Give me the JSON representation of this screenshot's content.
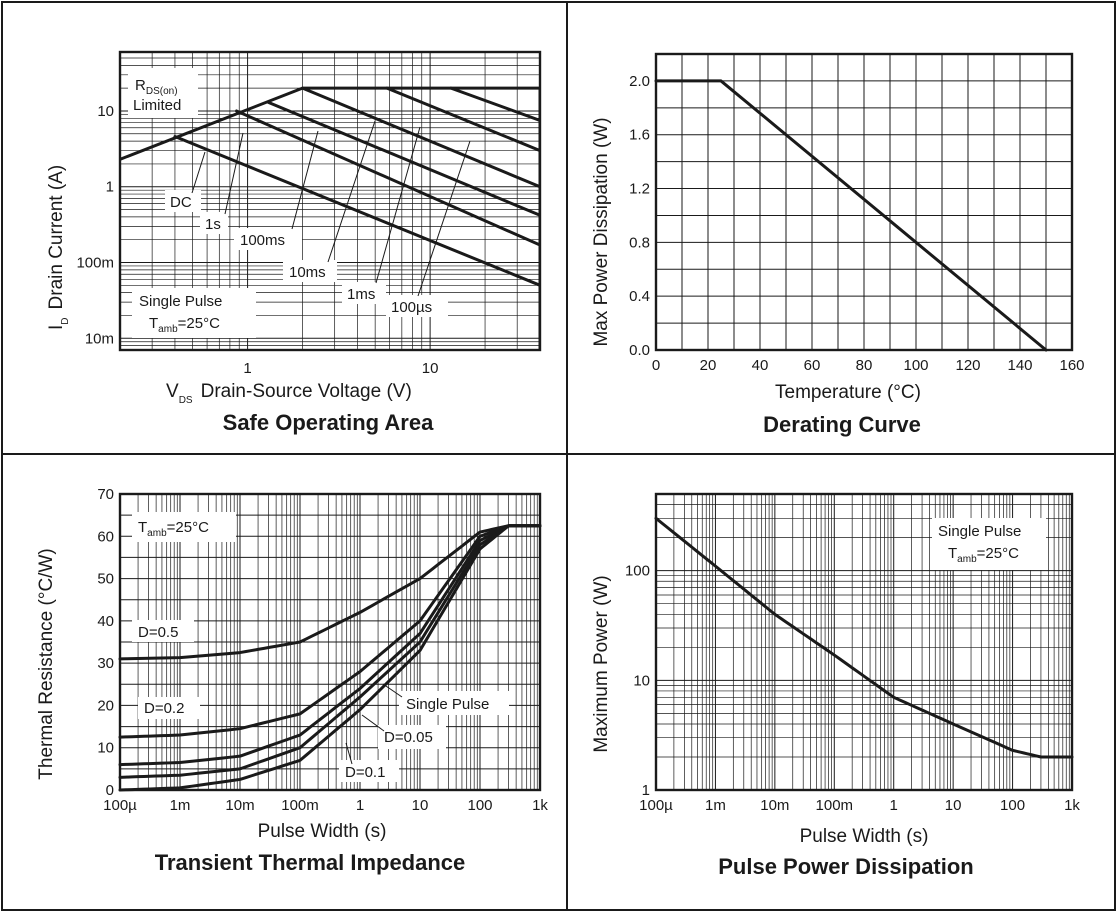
{
  "charts": {
    "soa": {
      "title": "Safe Operating Area",
      "xlabel_main": "V",
      "xlabel_sub": "DS",
      "xlabel_rest": "Drain-Source Voltage (V)",
      "ylabel_main": "I",
      "ylabel_sub": "D",
      "ylabel_rest": "Drain Current (A)",
      "xticks": [
        "1",
        "10"
      ],
      "yticks": [
        "10m",
        "100m",
        "1",
        "10"
      ],
      "rds_main": "R",
      "rds_sub": "DS(on)",
      "rds_line2": "Limited",
      "cond_line1": "Single Pulse",
      "cond_t": "T",
      "cond_sub": "amb",
      "cond_rest": "=25°C",
      "labels": {
        "dc": "DC",
        "s1": "1s",
        "ms100": "100ms",
        "ms10": "10ms",
        "ms1": "1ms",
        "us100": "100µs"
      }
    },
    "derating": {
      "title": "Derating Curve",
      "xlabel": "Temperature (°C)",
      "ylabel": "Max Power Dissipation (W)",
      "xticks": [
        "0",
        "20",
        "40",
        "60",
        "80",
        "100",
        "120",
        "140",
        "160"
      ],
      "yticks": [
        "0.0",
        "0.4",
        "0.8",
        "1.2",
        "1.6",
        "2.0"
      ]
    },
    "transient": {
      "title": "Transient Thermal Impedance",
      "xlabel": "Pulse Width (s)",
      "ylabel": "Thermal Resistance (°C/W)",
      "xticks": [
        "100µ",
        "1m",
        "10m",
        "100m",
        "1",
        "10",
        "100",
        "1k"
      ],
      "yticks": [
        "0",
        "10",
        "20",
        "30",
        "40",
        "50",
        "60",
        "70"
      ],
      "cond_t": "T",
      "cond_sub": "amb",
      "cond_rest": "=25°C",
      "labels": {
        "d05": "D=0.5",
        "d02": "D=0.2",
        "d01": "D=0.1",
        "d005": "D=0.05",
        "single": "Single Pulse"
      }
    },
    "pulse": {
      "title": "Pulse Power Dissipation",
      "xlabel": "Pulse Width (s)",
      "ylabel": "Maximum Power (W)",
      "xticks": [
        "100µ",
        "1m",
        "10m",
        "100m",
        "1",
        "10",
        "100",
        "1k"
      ],
      "yticks": [
        "1",
        "10",
        "100"
      ],
      "cond_line1": "Single Pulse",
      "cond_t": "T",
      "cond_sub": "amb",
      "cond_rest": "=25°C"
    }
  },
  "chart_data": [
    {
      "type": "line",
      "title": "Safe Operating Area",
      "xlabel": "VDS Drain-Source Voltage (V)",
      "ylabel": "ID Drain Current (A)",
      "xscale": "log",
      "yscale": "log",
      "xlim": [
        0.2,
        40
      ],
      "ylim": [
        0.007,
        60
      ],
      "grid": true,
      "series": [
        {
          "name": "RDS(on) Limited / DC",
          "x": [
            0.2,
            2,
            40,
            40
          ],
          "y": [
            2.3,
            20,
            20,
            0.006
          ]
        },
        {
          "name": "1s",
          "x": [
            0.4,
            40
          ],
          "y": [
            4.6,
            0.05
          ]
        },
        {
          "name": "100ms",
          "x": [
            0.87,
            40
          ],
          "y": [
            10,
            0.17
          ]
        },
        {
          "name": "10ms",
          "x": [
            1.3,
            40
          ],
          "y": [
            13,
            0.42
          ]
        },
        {
          "name": "1ms",
          "x": [
            2,
            40
          ],
          "y": [
            20,
            1.0
          ]
        },
        {
          "name": "100µs",
          "x": [
            5.8,
            40
          ],
          "y": [
            20,
            3.0
          ]
        },
        {
          "name": "",
          "x": [
            13,
            40
          ],
          "y": [
            20,
            7.5
          ]
        }
      ]
    },
    {
      "type": "line",
      "title": "Derating Curve",
      "xlabel": "Temperature (°C)",
      "ylabel": "Max Power Dissipation (W)",
      "xlim": [
        0,
        160
      ],
      "ylim": [
        0,
        2.2
      ],
      "grid": true,
      "series": [
        {
          "name": "",
          "x": [
            0,
            25,
            150
          ],
          "y": [
            2.0,
            2.0,
            0.0
          ]
        }
      ]
    },
    {
      "type": "line",
      "title": "Transient Thermal Impedance",
      "xlabel": "Pulse Width (s)",
      "ylabel": "Thermal Resistance (°C/W)",
      "xscale": "log",
      "xlim": [
        0.0001,
        1000
      ],
      "ylim": [
        0,
        70
      ],
      "grid": true,
      "series": [
        {
          "name": "D=0.5",
          "x": [
            0.0001,
            0.001,
            0.01,
            0.1,
            1,
            10,
            100,
            300,
            1000
          ],
          "y": [
            31,
            31.3,
            32.5,
            35,
            42,
            50,
            61,
            62.5,
            62.5
          ]
        },
        {
          "name": "D=0.2",
          "x": [
            0.0001,
            0.001,
            0.01,
            0.1,
            1,
            10,
            100,
            300,
            1000
          ],
          "y": [
            12.5,
            13,
            14.5,
            18,
            28,
            40,
            60,
            62.5,
            62.5
          ]
        },
        {
          "name": "D=0.1",
          "x": [
            0.0001,
            0.001,
            0.01,
            0.1,
            1,
            10,
            100,
            300,
            1000
          ],
          "y": [
            6,
            6.5,
            8,
            13,
            24,
            37,
            59,
            62.5,
            62.5
          ]
        },
        {
          "name": "D=0.05",
          "x": [
            0.0001,
            0.001,
            0.01,
            0.1,
            1,
            10,
            100,
            300,
            1000
          ],
          "y": [
            3,
            3.5,
            5,
            10,
            22,
            35,
            58,
            62.5,
            62.5
          ]
        },
        {
          "name": "Single Pulse",
          "x": [
            0.0001,
            0.001,
            0.01,
            0.1,
            1,
            10,
            100,
            300,
            1000
          ],
          "y": [
            0,
            0.5,
            2.5,
            7,
            19,
            33,
            57,
            62.5,
            62.5
          ]
        }
      ]
    },
    {
      "type": "line",
      "title": "Pulse Power Dissipation",
      "xlabel": "Pulse Width (s)",
      "ylabel": "Maximum Power (W)",
      "xscale": "log",
      "yscale": "log",
      "xlim": [
        0.0001,
        1000
      ],
      "ylim": [
        1,
        500
      ],
      "grid": true,
      "series": [
        {
          "name": "Single Pulse",
          "x": [
            0.0001,
            0.001,
            0.01,
            0.1,
            1,
            10,
            100,
            300,
            1000
          ],
          "y": [
            300,
            110,
            40,
            17,
            7,
            4,
            2.3,
            2,
            2
          ]
        }
      ]
    }
  ]
}
